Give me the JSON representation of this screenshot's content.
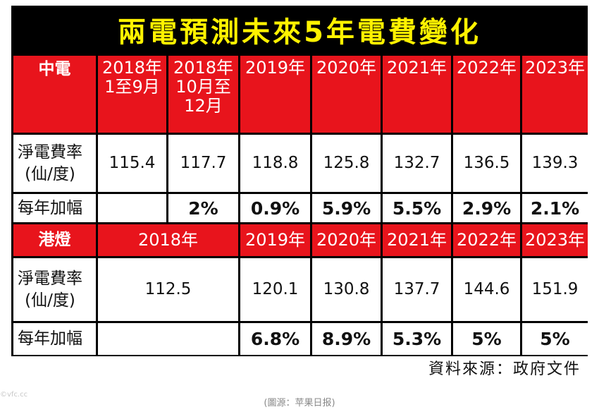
{
  "chart_data": {
    "type": "table",
    "title": "兩電預測未來5年電費變化",
    "source": "資料來源：政府文件",
    "caption": "(圖源：苹果日报)",
    "watermark": "©vfc.cc",
    "colors": {
      "header_red": "#e8141c",
      "title_yellow": "#fff200",
      "frame_black": "#000000"
    },
    "row_labels": {
      "rate": "淨電費率\n(仙/度)",
      "increase": "每年加幅"
    },
    "clp": {
      "company": "中電",
      "periods": [
        "2018年\n1至9月",
        "2018年\n10月至\n12月",
        "2019年",
        "2020年",
        "2021年",
        "2022年",
        "2023年"
      ],
      "rates": [
        "115.4",
        "117.7",
        "118.8",
        "125.8",
        "132.7",
        "136.5",
        "139.3"
      ],
      "increases": [
        "",
        "2%",
        "0.9%",
        "5.9%",
        "5.5%",
        "2.9%",
        "2.1%"
      ]
    },
    "hke": {
      "company": "港燈",
      "periods": [
        "2018年",
        "2019年",
        "2020年",
        "2021年",
        "2022年",
        "2023年"
      ],
      "rates": [
        "112.5",
        "120.1",
        "130.8",
        "137.7",
        "144.6",
        "151.9"
      ],
      "increases": [
        "",
        "6.8%",
        "8.9%",
        "5.3%",
        "5%",
        "5%"
      ]
    }
  }
}
